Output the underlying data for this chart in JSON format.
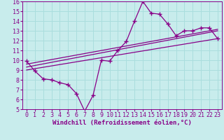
{
  "xlabel": "Windchill (Refroidissement éolien,°C)",
  "xlim": [
    -0.5,
    23.5
  ],
  "ylim": [
    5,
    16
  ],
  "xticks": [
    0,
    1,
    2,
    3,
    4,
    5,
    6,
    7,
    8,
    9,
    10,
    11,
    12,
    13,
    14,
    15,
    16,
    17,
    18,
    19,
    20,
    21,
    22,
    23
  ],
  "yticks": [
    5,
    6,
    7,
    8,
    9,
    10,
    11,
    12,
    13,
    14,
    15,
    16
  ],
  "bg_color": "#c8ecec",
  "line_color": "#880088",
  "grid_color": "#aadddd",
  "data_x": [
    0,
    1,
    2,
    3,
    4,
    5,
    6,
    7,
    8,
    9,
    10,
    11,
    12,
    13,
    14,
    15,
    16,
    17,
    18,
    19,
    20,
    21,
    22,
    23
  ],
  "data_y": [
    9.9,
    8.9,
    8.1,
    8.0,
    7.7,
    7.5,
    6.6,
    4.8,
    6.4,
    10.0,
    9.9,
    11.0,
    11.9,
    14.0,
    16.0,
    14.8,
    14.7,
    13.7,
    12.5,
    13.0,
    13.0,
    13.3,
    13.3,
    12.2
  ],
  "trend1_x": [
    0,
    23
  ],
  "trend1_y": [
    9.0,
    12.2
  ],
  "trend2_x": [
    0,
    23
  ],
  "trend2_y": [
    9.3,
    13.0
  ],
  "trend3_x": [
    0,
    23
  ],
  "trend3_y": [
    9.6,
    13.15
  ],
  "tick_fontsize": 6.0,
  "xlabel_fontsize": 6.5
}
